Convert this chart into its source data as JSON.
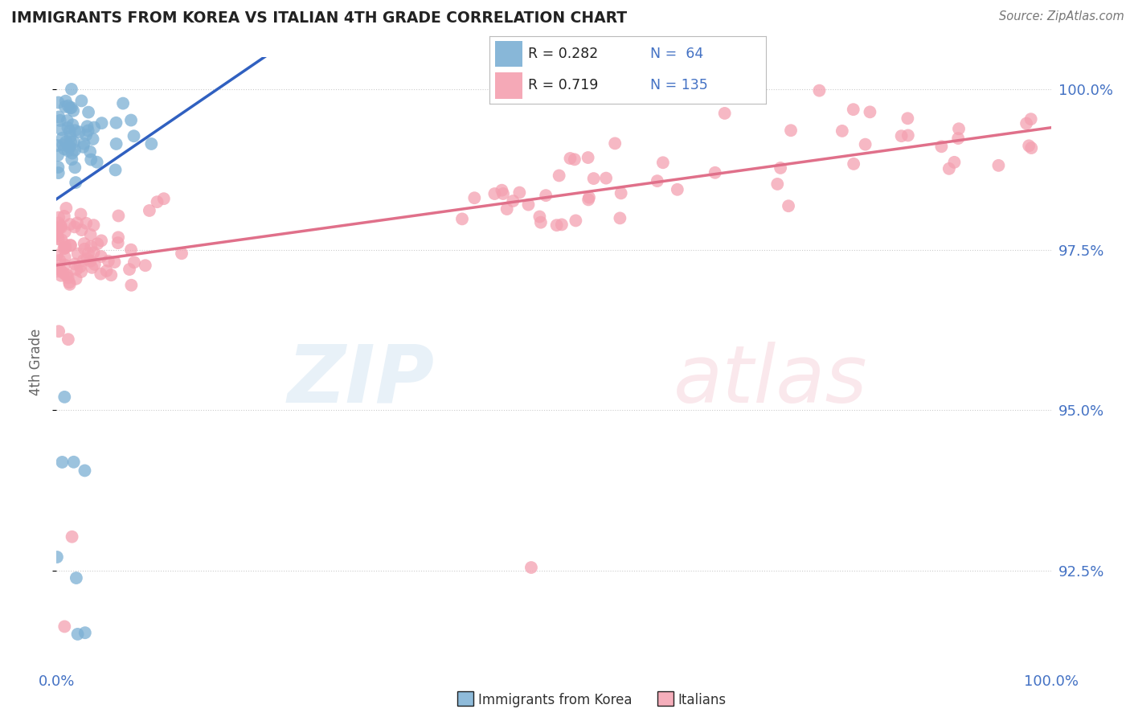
{
  "title": "IMMIGRANTS FROM KOREA VS ITALIAN 4TH GRADE CORRELATION CHART",
  "source": "Source: ZipAtlas.com",
  "ylabel": "4th Grade",
  "korea_color": "#7bafd4",
  "italian_color": "#f4a0b0",
  "korea_line_color": "#3060c0",
  "italian_line_color": "#e0708a",
  "korea_R": 0.282,
  "korea_N": 64,
  "italian_R": 0.719,
  "italian_N": 135,
  "legend_label_korea": "Immigrants from Korea",
  "legend_label_italian": "Italians",
  "background_color": "#ffffff",
  "grid_color": "#cccccc",
  "stat_color": "#4472c4",
  "title_color": "#222222",
  "y_min": 91.0,
  "y_max": 100.5,
  "x_min": 0.0,
  "x_max": 1.0,
  "yticks": [
    92.5,
    95.0,
    97.5,
    100.0
  ],
  "ytick_labels": [
    "92.5%",
    "95.0%",
    "97.5%",
    "100.0%"
  ]
}
